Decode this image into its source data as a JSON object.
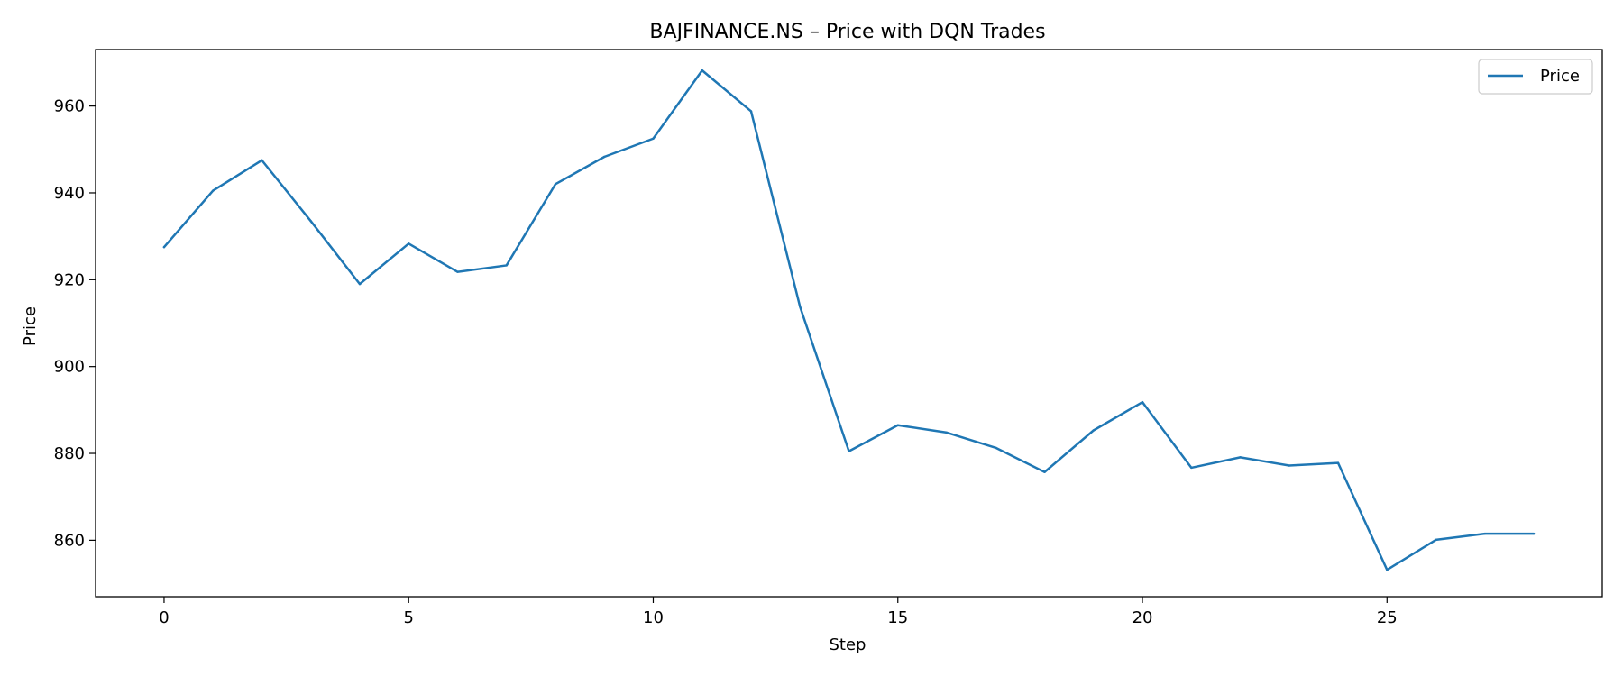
{
  "chart_data": {
    "type": "line",
    "title": "BAJFINANCE.NS – Price with DQN Trades",
    "xlabel": "Step",
    "ylabel": "Price",
    "xlim": [
      -1.4,
      29.4
    ],
    "ylim": [
      847,
      973
    ],
    "xticks": [
      0,
      5,
      10,
      15,
      20,
      25
    ],
    "yticks": [
      860,
      880,
      900,
      920,
      940,
      960
    ],
    "grid": false,
    "legend_position": "top-right",
    "series": [
      {
        "name": "Price",
        "color": "#1f77b4",
        "x": [
          0,
          1,
          2,
          3,
          4,
          5,
          6,
          7,
          8,
          9,
          10,
          11,
          12,
          13,
          14,
          15,
          16,
          17,
          18,
          19,
          20,
          21,
          22,
          23,
          24,
          25,
          26,
          27,
          28
        ],
        "values": [
          927.5,
          940.5,
          947.5,
          933.5,
          919,
          928.3,
          921.8,
          923.3,
          942,
          948.3,
          952.5,
          968.2,
          958.8,
          913.8,
          880.5,
          886.5,
          884.8,
          881.3,
          875.7,
          885.3,
          891.8,
          876.7,
          879.1,
          877.2,
          877.8,
          853.2,
          860.1,
          861.5,
          861.5
        ]
      }
    ]
  }
}
